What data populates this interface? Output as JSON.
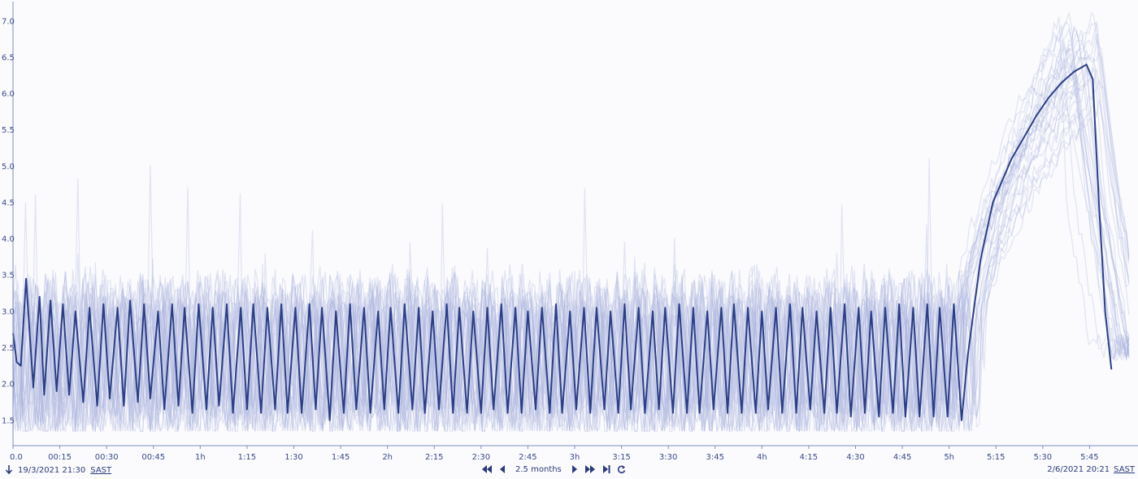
{
  "chart_data": {
    "type": "line",
    "title": "",
    "xlabel": "",
    "ylabel": "",
    "x_range_minutes": [
      0,
      360
    ],
    "ylim": [
      1.15,
      7.2
    ],
    "y_ticks": [
      "1.5",
      "2.0",
      "2.5",
      "3.0",
      "3.5",
      "4.0",
      "4.5",
      "5.0",
      "5.5",
      "6.0",
      "6.5",
      "7.0"
    ],
    "x_ticks": [
      "0.0",
      "00:15",
      "00:30",
      "00:45",
      "1h",
      "1:15",
      "1:30",
      "1:45",
      "2h",
      "2:15",
      "2:30",
      "2:45",
      "3h",
      "3:15",
      "3:30",
      "3:45",
      "4h",
      "4:15",
      "4:30",
      "4:45",
      "5h",
      "5:15",
      "5:30",
      "5:45"
    ],
    "grid": false,
    "legend": "none",
    "series": [
      {
        "style": "highlight",
        "color": "#2b3f88",
        "description": "oscillating between ~1.6 and ~3.1 with period ~6 min until ~5:05, then rising to ~6.4 by ~5:56 and dropping to ~2.2",
        "points": [
          [
            0,
            2.7
          ],
          [
            1.2,
            2.3
          ],
          [
            2.5,
            2.25
          ],
          [
            4.2,
            3.45
          ],
          [
            5.5,
            2.6
          ],
          [
            6.5,
            1.95
          ],
          [
            8.5,
            3.2
          ],
          [
            10,
            1.85
          ],
          [
            12,
            3.15
          ],
          [
            14,
            1.9
          ],
          [
            16,
            3.1
          ],
          [
            18,
            1.85
          ],
          [
            20,
            3.0
          ],
          [
            22.5,
            1.75
          ],
          [
            24.5,
            3.05
          ],
          [
            27,
            1.7
          ],
          [
            29,
            3.1
          ],
          [
            31,
            1.8
          ],
          [
            33.5,
            3.05
          ],
          [
            35.5,
            1.7
          ],
          [
            37.5,
            3.15
          ],
          [
            40,
            1.75
          ],
          [
            42,
            3.1
          ],
          [
            44,
            1.8
          ],
          [
            46.5,
            3.0
          ],
          [
            48.5,
            1.65
          ],
          [
            51,
            3.1
          ],
          [
            53,
            1.7
          ],
          [
            55,
            3.05
          ],
          [
            57.5,
            1.6
          ],
          [
            59.5,
            3.1
          ],
          [
            62,
            1.65
          ],
          [
            64,
            3.05
          ],
          [
            66,
            1.7
          ],
          [
            68.5,
            3.1
          ],
          [
            70.5,
            1.6
          ],
          [
            73,
            3.05
          ],
          [
            75,
            1.65
          ],
          [
            77,
            3.1
          ],
          [
            79.5,
            1.6
          ],
          [
            81.5,
            3.05
          ],
          [
            84,
            1.65
          ],
          [
            86,
            3.1
          ],
          [
            88,
            1.6
          ],
          [
            90.5,
            3.05
          ],
          [
            92.5,
            1.6
          ],
          [
            95,
            3.1
          ],
          [
            97,
            1.65
          ],
          [
            99,
            3.05
          ],
          [
            101.5,
            1.5
          ],
          [
            103.5,
            3.0
          ],
          [
            106,
            1.6
          ],
          [
            108,
            3.1
          ],
          [
            110,
            1.65
          ],
          [
            112.5,
            3.05
          ],
          [
            114.5,
            1.6
          ],
          [
            117,
            3.0
          ],
          [
            119,
            1.65
          ],
          [
            121,
            3.05
          ],
          [
            123.5,
            1.6
          ],
          [
            125.5,
            3.1
          ],
          [
            128,
            1.65
          ],
          [
            130,
            3.05
          ],
          [
            132,
            1.6
          ],
          [
            134.5,
            3.0
          ],
          [
            136.5,
            1.65
          ],
          [
            139,
            3.1
          ],
          [
            141,
            1.6
          ],
          [
            143,
            3.05
          ],
          [
            145.5,
            1.6
          ],
          [
            147.5,
            3.0
          ],
          [
            150,
            1.6
          ],
          [
            152,
            3.05
          ],
          [
            154,
            1.65
          ],
          [
            156.5,
            3.1
          ],
          [
            158.5,
            1.6
          ],
          [
            161,
            3.05
          ],
          [
            163,
            1.6
          ],
          [
            165,
            3.0
          ],
          [
            167.5,
            1.65
          ],
          [
            169.5,
            3.05
          ],
          [
            172,
            1.6
          ],
          [
            174,
            3.1
          ],
          [
            176,
            1.6
          ],
          [
            178.5,
            3.0
          ],
          [
            180.5,
            1.65
          ],
          [
            183,
            3.05
          ],
          [
            185,
            1.6
          ],
          [
            187,
            3.05
          ],
          [
            189.5,
            1.65
          ],
          [
            191.5,
            3.0
          ],
          [
            194,
            1.6
          ],
          [
            196,
            3.1
          ],
          [
            198,
            1.65
          ],
          [
            200.5,
            3.05
          ],
          [
            202.5,
            1.6
          ],
          [
            205,
            3.0
          ],
          [
            207,
            1.65
          ],
          [
            209,
            3.05
          ],
          [
            211.5,
            1.6
          ],
          [
            213.5,
            3.1
          ],
          [
            216,
            1.6
          ],
          [
            218,
            3.05
          ],
          [
            220,
            1.6
          ],
          [
            222.5,
            3.0
          ],
          [
            224.5,
            1.65
          ],
          [
            227,
            3.05
          ],
          [
            229,
            1.6
          ],
          [
            231,
            3.1
          ],
          [
            233.5,
            1.6
          ],
          [
            235.5,
            3.05
          ],
          [
            238,
            1.6
          ],
          [
            240,
            3.0
          ],
          [
            242,
            1.65
          ],
          [
            244.5,
            3.05
          ],
          [
            246.5,
            1.6
          ],
          [
            249,
            3.1
          ],
          [
            251,
            1.6
          ],
          [
            253,
            3.05
          ],
          [
            255.5,
            1.65
          ],
          [
            257.5,
            3.0
          ],
          [
            260,
            1.6
          ],
          [
            262,
            3.05
          ],
          [
            264,
            1.6
          ],
          [
            266.5,
            3.1
          ],
          [
            268.5,
            1.55
          ],
          [
            271,
            3.05
          ],
          [
            273,
            1.6
          ],
          [
            275,
            3.0
          ],
          [
            277.5,
            1.55
          ],
          [
            279.5,
            3.05
          ],
          [
            282,
            1.6
          ],
          [
            284,
            3.1
          ],
          [
            286,
            1.55
          ],
          [
            288.5,
            3.05
          ],
          [
            290.5,
            1.55
          ],
          [
            293,
            3.1
          ],
          [
            295,
            1.55
          ],
          [
            297,
            3.05
          ],
          [
            299.5,
            1.55
          ],
          [
            301.5,
            3.1
          ],
          [
            304,
            1.5
          ],
          [
            306,
            2.4
          ],
          [
            308,
            3.05
          ],
          [
            310,
            3.7
          ],
          [
            312,
            4.1
          ],
          [
            314,
            4.5
          ],
          [
            317,
            4.8
          ],
          [
            320,
            5.1
          ],
          [
            324,
            5.4
          ],
          [
            328,
            5.7
          ],
          [
            332,
            5.95
          ],
          [
            336,
            6.15
          ],
          [
            340,
            6.3
          ],
          [
            344,
            6.4
          ],
          [
            346,
            6.2
          ],
          [
            348,
            4.5
          ],
          [
            350,
            3.0
          ],
          [
            352,
            2.2
          ]
        ]
      }
    ]
  },
  "footer": {
    "start_time": "19/3/2021 21:30",
    "end_time": "2/6/2021 20:21",
    "timezone_start": "SAST",
    "timezone_end": "SAST",
    "range_label": "2.5 months"
  },
  "icons": {
    "start_marker": "arrow-down-icon",
    "first": "double-left-icon",
    "prev": "left-icon",
    "next": "right-icon",
    "last": "double-right-icon",
    "end": "skip-end-icon",
    "refresh": "refresh-icon"
  },
  "colors": {
    "highlight": "#2b3f88",
    "faint": "#aab4de",
    "axis": "#7f8cc8",
    "text": "#3a4a8a",
    "background": "#fbfbfd"
  }
}
